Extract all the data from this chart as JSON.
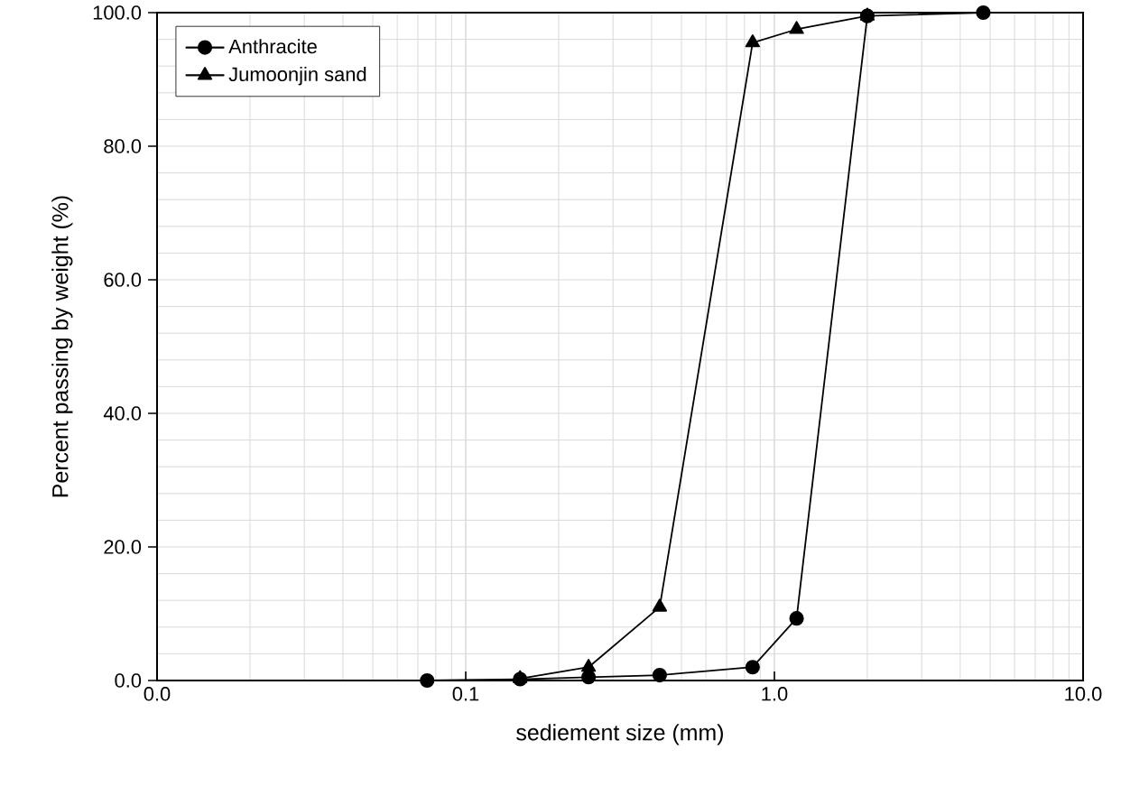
{
  "chart_data": {
    "type": "line",
    "xlabel": "sediement size (mm)",
    "ylabel": "Percent passing by weight (%)",
    "log": "x",
    "grid": true,
    "legend": "top left",
    "line_style": "solid",
    "xlim": [
      0.01,
      10
    ],
    "ylim": [
      0,
      100
    ],
    "xticks": [
      {
        "value": 0.01,
        "label": "0.0"
      },
      {
        "value": 0.1,
        "label": "0.1"
      },
      {
        "value": 1,
        "label": "1.0"
      },
      {
        "value": 10,
        "label": "10.0"
      }
    ],
    "yticks": [
      {
        "value": 0,
        "label": "0.0"
      },
      {
        "value": 20,
        "label": "20.0"
      },
      {
        "value": 40,
        "label": "40.0"
      },
      {
        "value": 60,
        "label": "60.0"
      },
      {
        "value": 80,
        "label": "80.0"
      },
      {
        "value": 100,
        "label": "100.0"
      }
    ],
    "series": [
      {
        "name": "Anthracite",
        "color": "#000000",
        "marker": "circle",
        "x": [
          0.075,
          0.15,
          0.25,
          0.425,
          0.85,
          1.18,
          2.0,
          4.75
        ],
        "values": [
          0,
          0.2,
          0.5,
          0.8,
          2,
          9.3,
          99.5,
          100
        ]
      },
      {
        "name": "Jumoonjin sand",
        "color": "#000000",
        "marker": "triangle",
        "x": [
          0.15,
          0.25,
          0.425,
          0.85,
          1.18,
          2.0
        ],
        "values": [
          0.3,
          2,
          11,
          95.5,
          97.5,
          99.5
        ]
      }
    ]
  }
}
